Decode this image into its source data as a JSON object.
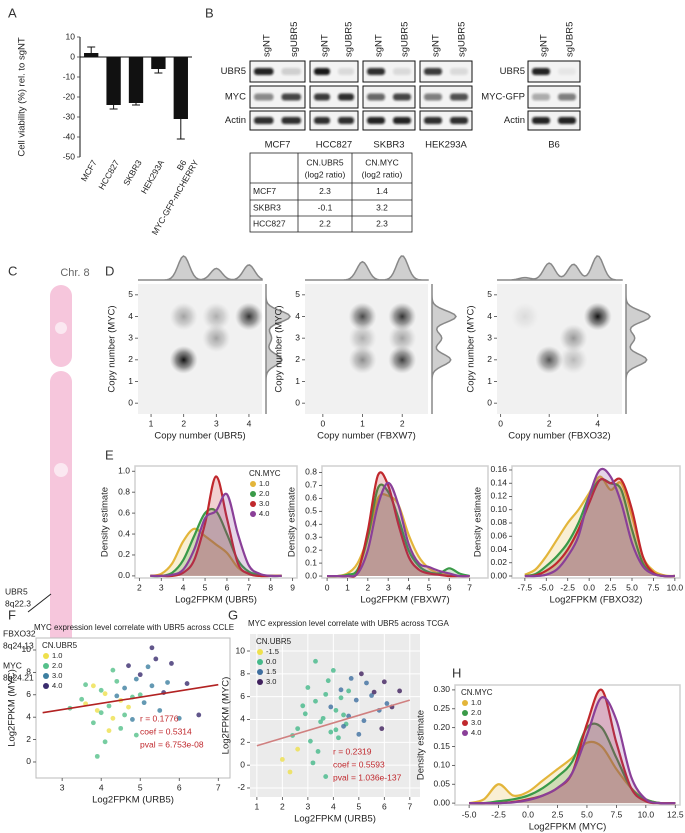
{
  "panels": [
    "A",
    "B",
    "C",
    "D",
    "E",
    "F",
    "G",
    "H"
  ],
  "blot": {
    "lanes": [
      "sgNT",
      "sgUBR5"
    ],
    "rows": [
      "UBR5",
      "MYC",
      "Actin"
    ],
    "groups": [
      "MCF7",
      "HCC827",
      "SKBR3",
      "HEK293A"
    ],
    "second": {
      "group": "B6",
      "rows": [
        "UBR5",
        "MYC-GFP",
        "Actin"
      ]
    }
  },
  "table": {
    "header": [
      [
        "CN.UBR5",
        "(log2 ratio)"
      ],
      [
        "CN.MYC",
        "(log2 ratio)"
      ]
    ],
    "rows": [
      [
        "MCF7",
        2.3,
        1.4
      ],
      [
        "SKBR3",
        -0.1,
        3.2
      ],
      [
        "HCC827",
        2.2,
        2.3
      ]
    ]
  },
  "chromosome": {
    "title": "Chr. 8",
    "loci": [
      {
        "gene": "UBR5",
        "band": "8q22.3"
      },
      {
        "gene": "FBXO32",
        "band": "8q24.13"
      },
      {
        "gene": "MYC",
        "band": "8q24.21"
      }
    ]
  },
  "chart_data": [
    {
      "type": "bar",
      "ylabel": "Cell viability (%) rel. to  sgNT",
      "categories": [
        "MCF7",
        "HCC827",
        "SKBR3",
        "HEK293A",
        "B6"
      ],
      "category_note": "MYC-GFP-mCHERRY",
      "values": [
        2,
        -24,
        -23,
        -6,
        -31
      ],
      "errors": [
        3,
        2,
        1,
        2,
        10
      ],
      "color": "#111111",
      "ylim": [
        -50,
        10
      ],
      "yticks": [
        10,
        0,
        -10,
        -20,
        -30,
        -40,
        -50
      ]
    },
    {
      "type": "density2d",
      "xlabel": "Copy number (UBR5)",
      "ylabel": "Copy number (MYC)",
      "x": [
        2,
        2,
        3,
        3,
        4
      ],
      "y": [
        2,
        4,
        4,
        3,
        4
      ],
      "weights": [
        1.0,
        0.35,
        0.3,
        0.35,
        0.85
      ],
      "xlim": [
        0.6,
        4.4
      ],
      "ylim": [
        -0.5,
        5.5
      ],
      "xticks": [
        1,
        2,
        3,
        4
      ],
      "yticks": [
        0,
        1,
        2,
        3,
        4,
        5
      ]
    },
    {
      "type": "density2d",
      "xlabel": "Copy number (FBXW7)",
      "ylabel": "Copy number (MYC)",
      "x": [
        1,
        2,
        1,
        2,
        1,
        2
      ],
      "y": [
        4,
        4,
        3,
        3,
        2,
        2
      ],
      "weights": [
        0.75,
        0.85,
        0.3,
        0.35,
        0.45,
        0.8
      ],
      "xlim": [
        -0.45,
        2.65
      ],
      "ylim": [
        -0.5,
        5.5
      ],
      "xticks": [
        0,
        1,
        2
      ],
      "yticks": [
        0,
        1,
        2,
        3,
        4,
        5
      ]
    },
    {
      "type": "density2d",
      "xlabel": "Copy number (FBXO32)",
      "ylabel": "Copy number (MYC)",
      "x": [
        4,
        3,
        2,
        3,
        1
      ],
      "y": [
        4,
        3,
        2,
        2,
        4
      ],
      "weights": [
        1.0,
        0.4,
        0.7,
        0.25,
        0.1
      ],
      "xlim": [
        -0.15,
        5.0
      ],
      "ylim": [
        -0.5,
        5.5
      ],
      "xticks": [
        0,
        2,
        4
      ],
      "yticks": [
        0,
        1,
        2,
        3,
        4,
        5
      ]
    },
    {
      "type": "density",
      "xlabel": "Log2FPKM (UBR5)",
      "ylabel": "Density estimate",
      "legend_title": "CN.MYC",
      "legend": "upper right",
      "x": [
        2.5,
        3,
        3.5,
        4,
        4.5,
        5,
        5.5,
        6,
        6.5,
        7,
        7.5,
        8,
        8.5
      ],
      "series": [
        {
          "name": "1.0",
          "color": "#e3b53a",
          "values": [
            0,
            0.02,
            0.12,
            0.33,
            0.45,
            0.38,
            0.3,
            0.22,
            0.08,
            0.02,
            0,
            0,
            0
          ]
        },
        {
          "name": "2.0",
          "color": "#3a9a48",
          "values": [
            0,
            0,
            0.03,
            0.15,
            0.38,
            0.6,
            0.62,
            0.4,
            0.15,
            0.04,
            0.01,
            0,
            0
          ]
        },
        {
          "name": "3.0",
          "color": "#c0282d",
          "values": [
            0,
            0,
            0,
            0.03,
            0.15,
            0.5,
            0.95,
            0.55,
            0.12,
            0.02,
            0,
            0,
            0
          ]
        },
        {
          "name": "4.0",
          "color": "#8a3f98",
          "values": [
            0,
            0,
            0.01,
            0.06,
            0.25,
            0.55,
            0.62,
            0.78,
            0.4,
            0.1,
            0.02,
            0,
            0
          ]
        }
      ],
      "xlim": [
        1.8,
        9.2
      ],
      "ylim": [
        -0.02,
        1.05
      ],
      "xticks": [
        2,
        3,
        4,
        5,
        6,
        7,
        8,
        9
      ],
      "yticks": [
        {
          "value": 0,
          "label": "0.0"
        },
        0.2,
        0.4,
        0.6,
        0.8,
        {
          "value": 1,
          "label": "1.0"
        }
      ]
    },
    {
      "type": "density",
      "xlabel": "Log2FPKM (FBXW7)",
      "ylabel": "Density estimate",
      "x": [
        0,
        0.5,
        1,
        1.5,
        2,
        2.5,
        3,
        3.5,
        4,
        4.5,
        5,
        5.5,
        6,
        6.5,
        7
      ],
      "series": [
        {
          "color": "#e3b53a",
          "values": [
            0,
            0,
            0.02,
            0.1,
            0.3,
            0.6,
            0.62,
            0.55,
            0.32,
            0.15,
            0.06,
            0.02,
            0.01,
            0,
            0
          ]
        },
        {
          "color": "#3a9a48",
          "values": [
            0,
            0,
            0.01,
            0.05,
            0.3,
            0.68,
            0.65,
            0.45,
            0.2,
            0.08,
            0.03,
            0.02,
            0.06,
            0.02,
            0
          ]
        },
        {
          "color": "#c0282d",
          "values": [
            0,
            0,
            0,
            0.03,
            0.35,
            0.78,
            0.7,
            0.4,
            0.15,
            0.05,
            0.02,
            0.01,
            0,
            0,
            0
          ]
        },
        {
          "color": "#8a3f98",
          "values": [
            0,
            0,
            0,
            0.02,
            0.2,
            0.55,
            0.72,
            0.55,
            0.25,
            0.1,
            0.07,
            0.04,
            0.02,
            0,
            0
          ]
        }
      ],
      "xlim": [
        -0.25,
        7.9
      ],
      "ylim": [
        -0.015,
        0.85
      ],
      "xticks": [
        0,
        1,
        2,
        3,
        4,
        5,
        6,
        7
      ],
      "yticks": [
        {
          "value": 0,
          "label": "0.0"
        },
        0.1,
        0.2,
        0.3,
        0.4,
        0.5,
        0.6,
        0.7,
        0.8
      ]
    },
    {
      "type": "density",
      "xlabel": "Log2FPKM (FBXO32)",
      "ylabel": "Density estimate",
      "x": [
        -7.5,
        -6.25,
        -5,
        -3.75,
        -2.5,
        -1.25,
        0,
        1.25,
        2.5,
        3.75,
        5,
        6.25,
        7.5,
        8.75,
        10
      ],
      "series": [
        {
          "color": "#e3b53a",
          "values": [
            0.002,
            0.01,
            0.03,
            0.055,
            0.08,
            0.1,
            0.125,
            0.15,
            0.13,
            0.14,
            0.09,
            0.03,
            0.008,
            0.001,
            0
          ]
        },
        {
          "color": "#3a9a48",
          "values": [
            0,
            0.003,
            0.015,
            0.03,
            0.05,
            0.08,
            0.12,
            0.145,
            0.14,
            0.13,
            0.07,
            0.02,
            0.004,
            0,
            0
          ]
        },
        {
          "color": "#c0282d",
          "values": [
            0,
            0.001,
            0.008,
            0.02,
            0.04,
            0.07,
            0.11,
            0.145,
            0.14,
            0.145,
            0.1,
            0.03,
            0.005,
            0,
            0
          ]
        },
        {
          "color": "#8a3f98",
          "values": [
            0,
            0,
            0.002,
            0.01,
            0.03,
            0.06,
            0.12,
            0.16,
            0.15,
            0.11,
            0.05,
            0.015,
            0.003,
            0,
            0
          ]
        }
      ],
      "xlim": [
        -9.0,
        10.6
      ],
      "ylim": [
        -0.003,
        0.166
      ],
      "xticks": [
        -7.5,
        {
          "value": -5,
          "label": "-5.0"
        },
        -2.5,
        {
          "value": 0,
          "label": "0.0"
        },
        2.5,
        {
          "value": 5,
          "label": "5.0"
        },
        7.5,
        {
          "value": 10,
          "label": "10.0"
        }
      ],
      "yticks": [
        {
          "value": 0,
          "label": "0.00"
        },
        0.02,
        0.04,
        0.06,
        0.08,
        {
          "value": 0.1,
          "label": "0.10"
        },
        0.12,
        0.14,
        0.16
      ]
    },
    {
      "type": "scatter",
      "title": "MYC expression level correlate with UBR5 across CCLE",
      "xlabel": "Log2FPKM (URB5)",
      "ylabel": "Log2FPKM (MYC)",
      "legend_title": "CN.UBR5",
      "legend": "upper left",
      "series": [
        {
          "name": "1.0",
          "color": "#eee04c",
          "x": [
            3.6,
            3.9,
            4.1,
            4.3,
            4.5,
            4.2,
            3.8,
            4.7
          ],
          "y": [
            5.2,
            4.6,
            6.1,
            3.9,
            5.5,
            2.8,
            6.8,
            4.9
          ]
        },
        {
          "name": "2.0",
          "color": "#55c08a",
          "x": [
            3.2,
            3.5,
            3.8,
            4.0,
            4.2,
            4.4,
            4.6,
            4.8,
            5.0,
            4.1,
            3.9,
            4.5,
            4.3,
            3.6,
            4.9,
            4.0
          ],
          "y": [
            4.8,
            5.6,
            3.5,
            6.4,
            5.0,
            7.2,
            4.2,
            5.8,
            6.0,
            1.8,
            0.5,
            3.0,
            8.2,
            6.9,
            2.4,
            4.4
          ]
        },
        {
          "name": "3.0",
          "color": "#3d7fa0",
          "x": [
            4.6,
            4.9,
            5.1,
            5.3,
            5.5,
            5.2,
            4.8,
            5.7,
            6.0,
            4.4
          ],
          "y": [
            6.6,
            7.4,
            5.3,
            6.8,
            4.6,
            8.5,
            3.8,
            7.1,
            3.9,
            5.9
          ]
        },
        {
          "name": "4.0",
          "color": "#3a2c6e",
          "x": [
            5.0,
            5.4,
            5.6,
            5.8,
            6.2,
            5.3,
            4.7,
            6.5
          ],
          "y": [
            7.8,
            9.2,
            6.2,
            8.8,
            7.0,
            10.2,
            8.6,
            4.2
          ]
        }
      ],
      "fit": {
        "x": [
          2.5,
          7.0
        ],
        "y": [
          4.4,
          6.9
        ],
        "color": "#b22222"
      },
      "annotations": [
        "r = 0.1776",
        "coef = 0.5314",
        "pval = 6.753e-08"
      ],
      "xlim": [
        2.33,
        7.3
      ],
      "ylim": [
        -1.43,
        11.07
      ],
      "xticks": [
        3,
        4,
        5,
        6,
        7
      ],
      "yticks": [
        0,
        2,
        4,
        6,
        8,
        10
      ]
    },
    {
      "type": "scatter",
      "title": "MYC expression level correlate with UBR5 across TCGA",
      "xlabel": "Log2FPKM (URB5)",
      "ylabel": "Log2FPKM (MYC)",
      "legend_title": "CN.UBR5",
      "legend": "upper left",
      "grid": true,
      "series": [
        {
          "name": "-1.5",
          "color": "#eee04c",
          "x": [
            2.0,
            2.3,
            2.6
          ],
          "y": [
            0.5,
            -0.6,
            1.4
          ]
        },
        {
          "name": "0.0",
          "color": "#45b98a",
          "x": [
            2.6,
            2.9,
            3.1,
            3.3,
            3.5,
            3.7,
            3.9,
            4.1,
            4.3,
            4.5,
            3.0,
            3.4,
            3.8,
            4.2,
            4.6,
            2.8,
            3.2,
            3.6,
            4.0,
            4.4,
            3.3,
            3.7,
            4.1,
            2.4
          ],
          "y": [
            3.2,
            4.5,
            2.1,
            5.6,
            3.8,
            6.2,
            2.9,
            4.8,
            5.9,
            3.6,
            6.8,
            1.2,
            7.4,
            2.4,
            6.5,
            5.2,
            0.2,
            4.1,
            8.3,
            4.4,
            9.1,
            -1.0,
            3.1,
            2.6
          ]
        },
        {
          "name": "1.5",
          "color": "#3f6fa0",
          "x": [
            3.9,
            4.3,
            4.6,
            4.9,
            5.2,
            5.5,
            4.7,
            5.0,
            4.4,
            5.8,
            5.3,
            6.1
          ],
          "y": [
            5.1,
            6.6,
            4.3,
            5.7,
            3.9,
            6.1,
            7.6,
            2.7,
            3.4,
            4.8,
            7.2,
            5.4
          ]
        },
        {
          "name": "3.0",
          "color": "#40215e",
          "x": [
            5.6,
            5.9,
            6.3,
            6.6,
            5.1,
            6.0
          ],
          "y": [
            6.4,
            3.2,
            5.1,
            6.5,
            8.0,
            7.3
          ]
        }
      ],
      "fit": {
        "x": [
          1.0,
          7.0
        ],
        "y": [
          1.7,
          5.7
        ],
        "color": "#d08080"
      },
      "annotations": [
        "r = 0.2319",
        "coef = 0.5593",
        "pval = 1.036e-137"
      ],
      "xlim": [
        0.73,
        7.4
      ],
      "ylim": [
        -2.79,
        11.49
      ],
      "xticks": [
        1,
        2,
        3,
        4,
        5,
        6,
        7
      ],
      "yticks": [
        -2,
        0,
        2,
        4,
        6,
        8,
        10
      ]
    },
    {
      "type": "density",
      "xlabel": "Log2FPKM (MYC)",
      "ylabel": "Density estimate",
      "legend_title": "CN.MYC",
      "legend": "upper left",
      "x": [
        -5,
        -3.75,
        -2.5,
        -1.25,
        0,
        1.25,
        2.5,
        3.75,
        5,
        6.25,
        7.5,
        8.75,
        10,
        11.25,
        12.5
      ],
      "series": [
        {
          "name": "1.0",
          "color": "#e3b53a",
          "values": [
            0,
            0.01,
            0.05,
            0.02,
            0.03,
            0.06,
            0.09,
            0.12,
            0.16,
            0.15,
            0.09,
            0.04,
            0.01,
            0,
            0
          ]
        },
        {
          "name": "2.0",
          "color": "#3a9a48",
          "values": [
            0,
            0,
            0.005,
            0.01,
            0.02,
            0.04,
            0.07,
            0.11,
            0.2,
            0.2,
            0.12,
            0.04,
            0.01,
            0,
            0
          ]
        },
        {
          "name": "3.0",
          "color": "#c0282d",
          "values": [
            0,
            0,
            0,
            0.003,
            0.01,
            0.02,
            0.04,
            0.08,
            0.21,
            0.3,
            0.16,
            0.04,
            0.005,
            0,
            0
          ]
        },
        {
          "name": "4.0",
          "color": "#8a3f98",
          "values": [
            0,
            0,
            0,
            0.002,
            0.008,
            0.02,
            0.04,
            0.08,
            0.18,
            0.28,
            0.22,
            0.07,
            0.01,
            0,
            0
          ]
        }
      ],
      "xlim": [
        -6.2,
        12.9
      ],
      "ylim": [
        -0.005,
        0.313
      ],
      "xticks": [
        {
          "value": -5,
          "label": "-5.0"
        },
        -2.5,
        {
          "value": 0,
          "label": "0.0"
        },
        2.5,
        {
          "value": 5,
          "label": "5.0"
        },
        7.5,
        {
          "value": 10,
          "label": "10.0"
        },
        12.5
      ],
      "yticks": [
        {
          "value": 0,
          "label": "0.00"
        },
        0.05,
        {
          "value": 0.1,
          "label": "0.10"
        },
        0.15,
        {
          "value": 0.2,
          "label": "0.20"
        },
        0.25,
        {
          "value": 0.3,
          "label": "0.30"
        }
      ]
    }
  ]
}
